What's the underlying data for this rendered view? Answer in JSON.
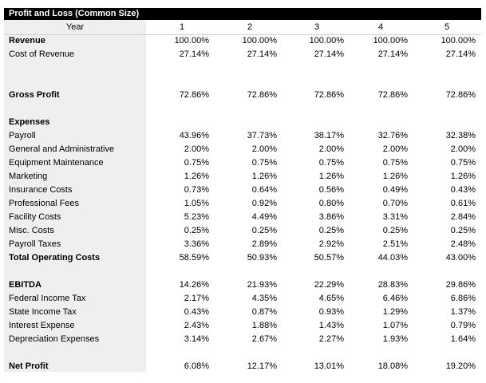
{
  "title": "Profit and Loss (Common Size)",
  "header": [
    "Year",
    "1",
    "2",
    "3",
    "4",
    "5"
  ],
  "rows": [
    {
      "label": "Revenue",
      "bold": true,
      "values": [
        "100.00%",
        "100.00%",
        "100.00%",
        "100.00%",
        "100.00%"
      ]
    },
    {
      "label": "Cost of Revenue",
      "values": [
        "27.14%",
        "27.14%",
        "27.14%",
        "27.14%",
        "27.14%"
      ]
    },
    null,
    null,
    {
      "label": "Gross Profit",
      "bold": true,
      "values": [
        "72.86%",
        "72.86%",
        "72.86%",
        "72.86%",
        "72.86%"
      ]
    },
    null,
    {
      "label": "Expenses",
      "bold": true
    },
    {
      "label": "Payroll",
      "values": [
        "43.96%",
        "37.73%",
        "38.17%",
        "32.76%",
        "32.38%"
      ]
    },
    {
      "label": "General and Administrative",
      "values": [
        "2.00%",
        "2.00%",
        "2.00%",
        "2.00%",
        "2.00%"
      ]
    },
    {
      "label": "Equipment Maintenance",
      "values": [
        "0.75%",
        "0.75%",
        "0.75%",
        "0.75%",
        "0.75%"
      ]
    },
    {
      "label": "Marketing",
      "values": [
        "1.26%",
        "1.26%",
        "1.26%",
        "1.26%",
        "1.26%"
      ]
    },
    {
      "label": "Insurance Costs",
      "values": [
        "0.73%",
        "0.64%",
        "0.56%",
        "0.49%",
        "0.43%"
      ]
    },
    {
      "label": "Professional Fees",
      "values": [
        "1.05%",
        "0.92%",
        "0.80%",
        "0.70%",
        "0.61%"
      ]
    },
    {
      "label": "Facility Costs",
      "values": [
        "5.23%",
        "4.49%",
        "3.86%",
        "3.31%",
        "2.84%"
      ]
    },
    {
      "label": "Misc. Costs",
      "values": [
        "0.25%",
        "0.25%",
        "0.25%",
        "0.25%",
        "0.25%"
      ]
    },
    {
      "label": "Payroll Taxes",
      "values": [
        "3.36%",
        "2.89%",
        "2.92%",
        "2.51%",
        "2.48%"
      ]
    },
    {
      "label": "Total Operating Costs",
      "bold": true,
      "values": [
        "58.59%",
        "50.93%",
        "50.57%",
        "44.03%",
        "43.00%"
      ]
    },
    null,
    {
      "label": "EBITDA",
      "bold": true,
      "values": [
        "14.26%",
        "21.93%",
        "22.29%",
        "28.83%",
        "29.86%"
      ]
    },
    {
      "label": "Federal Income Tax",
      "values": [
        "2.17%",
        "4.35%",
        "4.65%",
        "6.46%",
        "6.86%"
      ]
    },
    {
      "label": "State Income Tax",
      "values": [
        "0.43%",
        "0.87%",
        "0.93%",
        "1.29%",
        "1.37%"
      ]
    },
    {
      "label": "Interest Expense",
      "values": [
        "2.43%",
        "1.88%",
        "1.43%",
        "1.07%",
        "0.79%"
      ]
    },
    {
      "label": "Depreciation Expenses",
      "values": [
        "3.14%",
        "2.67%",
        "2.27%",
        "1.93%",
        "1.64%"
      ]
    },
    null,
    {
      "label": "Net Profit",
      "bold": true,
      "values": [
        "6.08%",
        "12.17%",
        "13.01%",
        "18.08%",
        "19.20%"
      ]
    }
  ]
}
